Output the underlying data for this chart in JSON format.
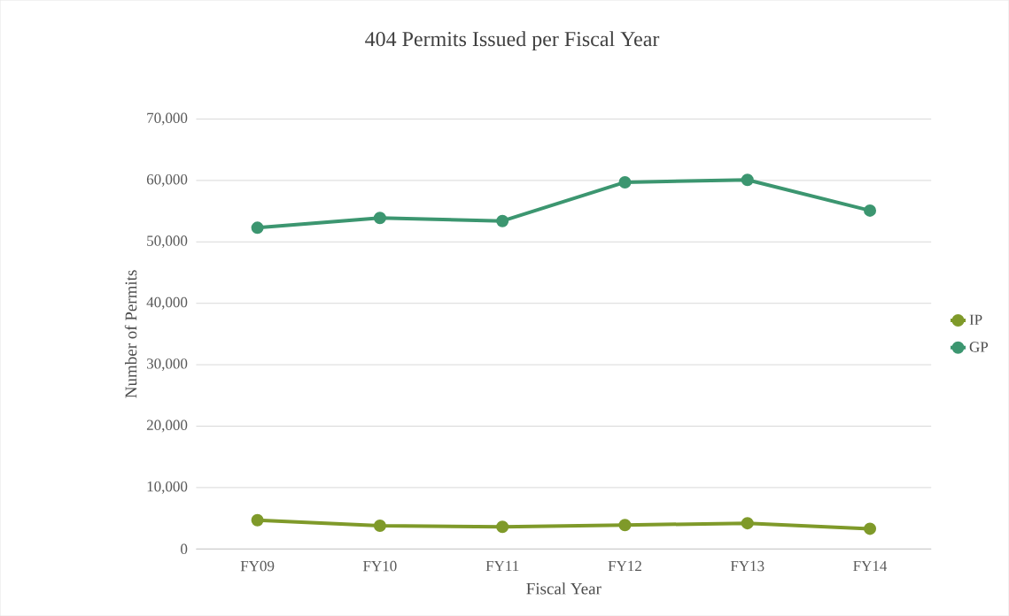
{
  "chart_data": {
    "type": "line",
    "title": "404 Permits Issued per Fiscal Year",
    "xlabel": "Fiscal Year",
    "ylabel": "Number of Permits",
    "categories": [
      "FY09",
      "FY10",
      "FY11",
      "FY12",
      "FY13",
      "FY14"
    ],
    "series": [
      {
        "name": "IP",
        "color": "#7f9a2a",
        "values": [
          4700,
          3800,
          3600,
          3900,
          4200,
          3300
        ]
      },
      {
        "name": "GP",
        "color": "#3c9670",
        "values": [
          52300,
          53900,
          53400,
          59700,
          60100,
          55100
        ]
      }
    ],
    "ylim": [
      0,
      70000
    ],
    "yticks": [
      {
        "value": 0,
        "label": "0"
      },
      {
        "value": 10000,
        "label": "10,000"
      },
      {
        "value": 20000,
        "label": "20,000"
      },
      {
        "value": 30000,
        "label": "30,000"
      },
      {
        "value": 40000,
        "label": "40,000"
      },
      {
        "value": 50000,
        "label": "50,000"
      },
      {
        "value": 60000,
        "label": "60,000"
      },
      {
        "value": 70000,
        "label": "70,000"
      }
    ],
    "grid": "y",
    "legend": "right",
    "marker": "circle",
    "line_style": "solid"
  }
}
